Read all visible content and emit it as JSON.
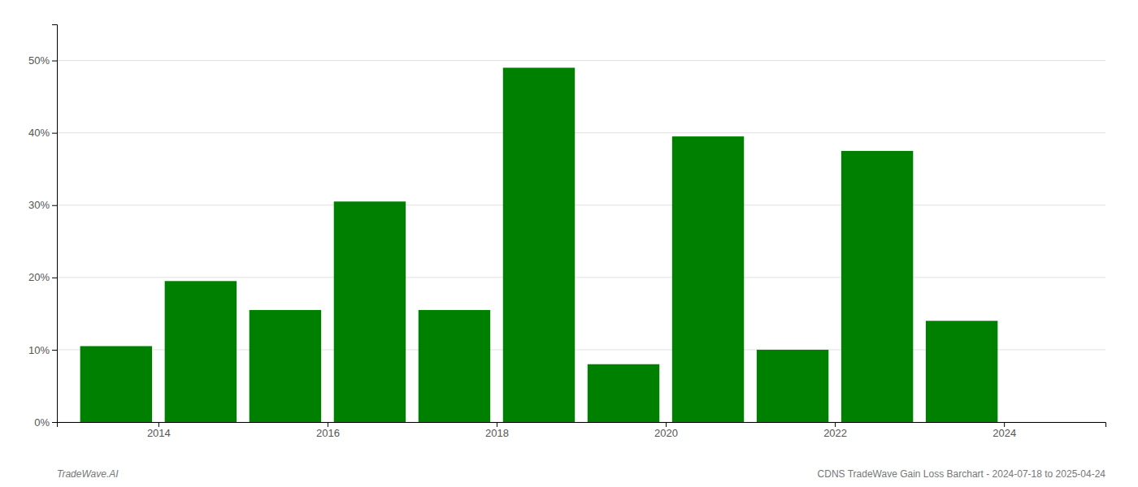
{
  "chart_data": {
    "type": "bar",
    "x": [
      2013.5,
      2014.5,
      2015.5,
      2016.5,
      2017.5,
      2018.5,
      2019.5,
      2020.5,
      2021.5,
      2022.5,
      2023.5
    ],
    "values": [
      0.105,
      0.195,
      0.155,
      0.305,
      0.155,
      0.49,
      0.08,
      0.395,
      0.1,
      0.375,
      0.14
    ],
    "color": "#008000",
    "xlim": [
      2012.8,
      2025.2
    ],
    "xticks": [
      2014,
      2016,
      2018,
      2020,
      2022,
      2024
    ],
    "ylim": [
      0,
      0.55
    ],
    "yticks": [
      {
        "value": 0.0,
        "label": "0%"
      },
      {
        "value": 0.1,
        "label": "10%"
      },
      {
        "value": 0.2,
        "label": "20%"
      },
      {
        "value": 0.3,
        "label": "30%"
      },
      {
        "value": 0.4,
        "label": "40%"
      },
      {
        "value": 0.5,
        "label": "50%"
      }
    ],
    "grid": true,
    "annotations": [
      "TradeWave.AI",
      "CDNS TradeWave Gain Loss Barchart - 2024-07-18 to 2025-04-24"
    ]
  }
}
